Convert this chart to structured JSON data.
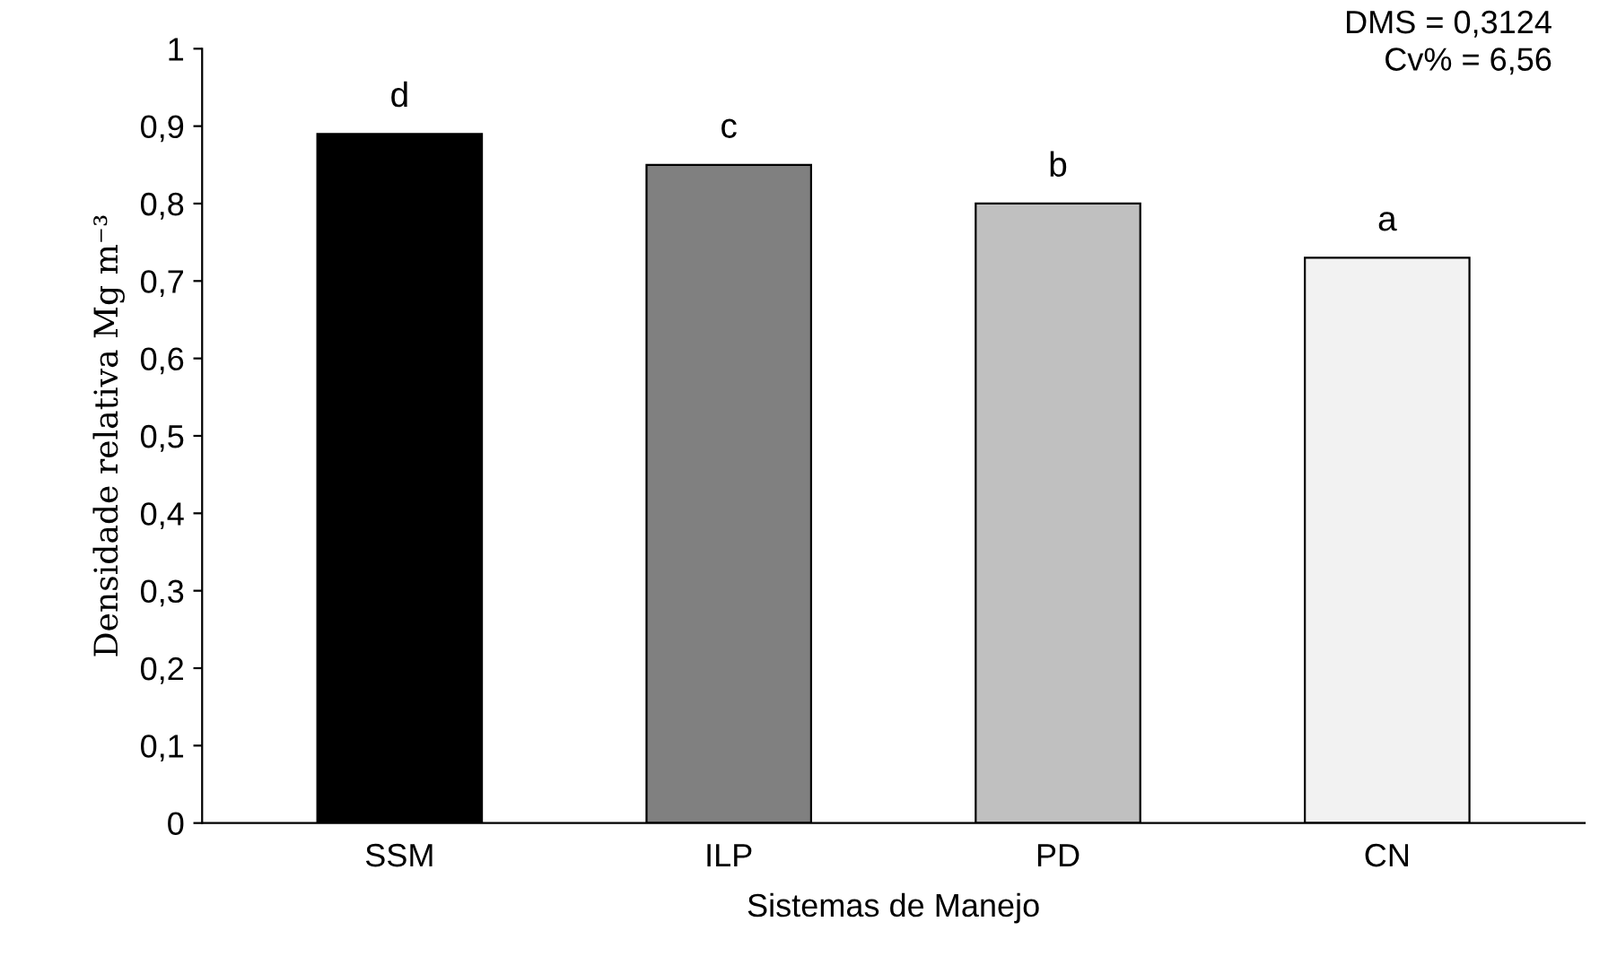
{
  "chart_data": {
    "type": "bar",
    "xlabel": "Sistemas de Manejo",
    "ylabel": "Densidade relativa Mg m⁻³",
    "categories": [
      "SSM",
      "ILP",
      "PD",
      "CN"
    ],
    "values": [
      0.89,
      0.85,
      0.8,
      0.73
    ],
    "colors": [
      "#000000",
      "#808080",
      "#c0c0c0",
      "#f2f2f2"
    ],
    "ylim": [
      0,
      1
    ],
    "yticks": [
      0,
      {
        "value": 0.1,
        "label": "0,1"
      },
      {
        "value": 0.2,
        "label": "0,2"
      },
      {
        "value": 0.3,
        "label": "0,3"
      },
      {
        "value": 0.4,
        "label": "0,4"
      },
      {
        "value": 0.5,
        "label": "0,5"
      },
      {
        "value": 0.6,
        "label": "0,6"
      },
      {
        "value": 0.7,
        "label": "0,7"
      },
      {
        "value": 0.8,
        "label": "0,8"
      },
      {
        "value": 0.9,
        "label": "0,9"
      },
      1
    ],
    "grid": false,
    "legend": false,
    "annotations": [
      {
        "text": "d",
        "x": "SSM",
        "y": 0.89
      },
      {
        "text": "c",
        "x": "ILP",
        "y": 0.85
      },
      {
        "text": "b",
        "x": "PD",
        "y": 0.8
      },
      {
        "text": "a",
        "x": "CN",
        "y": 0.73
      },
      "DMS = 0,3124\nCv% = 6,56"
    ]
  }
}
